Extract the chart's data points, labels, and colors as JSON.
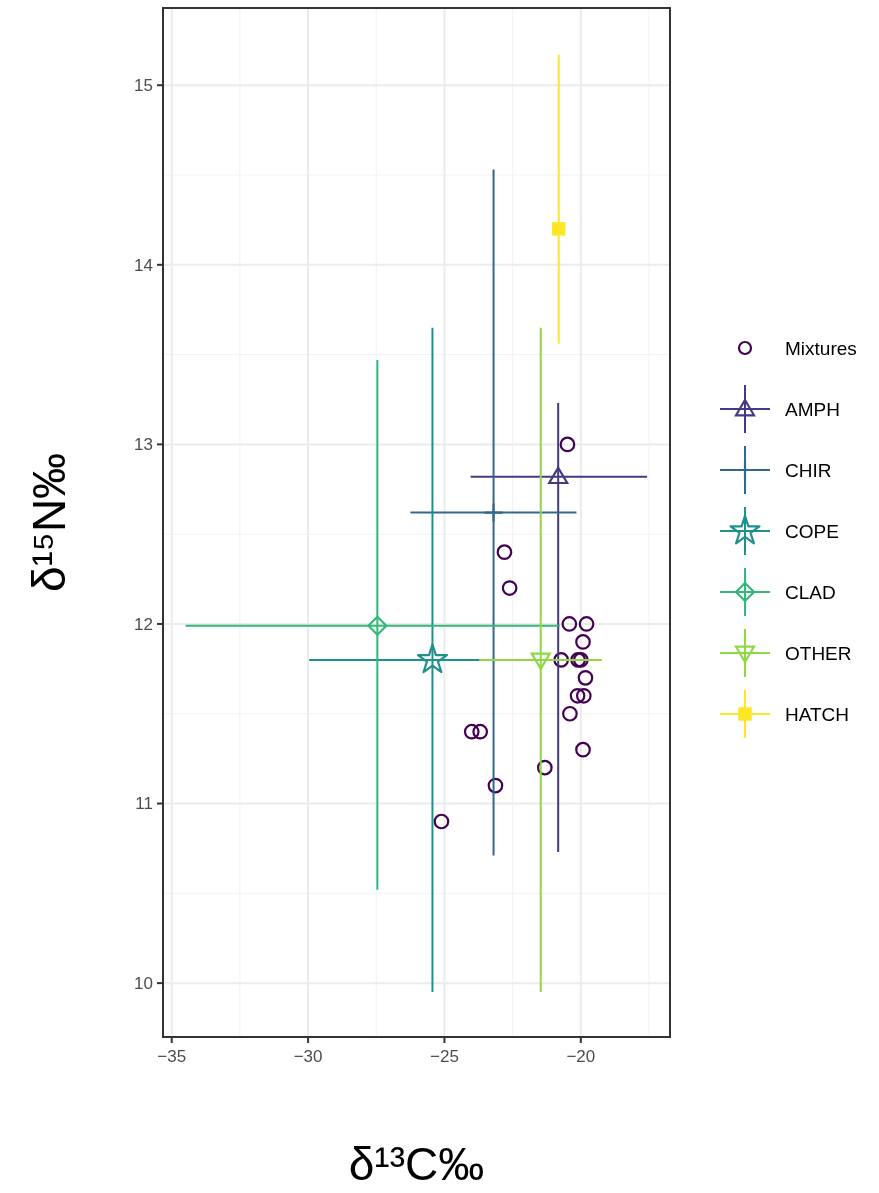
{
  "chart_data": {
    "type": "scatter",
    "xlabel": "δ¹³C‰",
    "ylabel": "δ¹⁵N‰",
    "xlim": [
      -35.32,
      -16.73
    ],
    "ylim": [
      9.7,
      15.43
    ],
    "xticks": [
      {
        "value": -35,
        "label": "−35"
      },
      {
        "value": -30,
        "label": "−30"
      },
      {
        "value": -25,
        "label": "−25"
      },
      {
        "value": -20,
        "label": "−20"
      }
    ],
    "yticks": [
      10,
      11,
      12,
      13,
      14,
      15
    ],
    "grid": true,
    "legend": "right",
    "series": [
      {
        "name": "Mixtures",
        "color": "#440154",
        "marker": "circle",
        "x": [
          -20.49,
          -22.8,
          -22.61,
          -20.42,
          -19.79,
          -19.92,
          -20.72,
          -20.1,
          -20.0,
          -19.83,
          -20.12,
          -19.89,
          -20.4,
          -19.92,
          -21.32,
          -23.13,
          -24.0,
          -23.69,
          -25.11
        ],
        "values": [
          13.0,
          12.4,
          12.2,
          12.0,
          12.0,
          11.9,
          11.8,
          11.8,
          11.8,
          11.7,
          11.6,
          11.6,
          11.5,
          11.3,
          11.2,
          11.1,
          11.4,
          11.4,
          10.9
        ]
      },
      {
        "name": "AMPH",
        "color": "#443a83",
        "marker": "triangle",
        "x": [
          -20.83
        ],
        "values": [
          12.82
        ],
        "errors": [
          [
            10.73,
            13.23
          ]
        ],
        "xerrors": [
          [
            -24.04,
            -17.57
          ]
        ]
      },
      {
        "name": "CHIR",
        "color": "#31688e",
        "marker": "cross",
        "x": [
          -23.2
        ],
        "values": [
          12.62
        ],
        "errors": [
          [
            10.71,
            14.53
          ]
        ],
        "xerrors": [
          [
            -26.25,
            -20.16
          ]
        ]
      },
      {
        "name": "COPE",
        "color": "#21908c",
        "marker": "star",
        "x": [
          -25.44
        ],
        "values": [
          11.8
        ],
        "errors": [
          [
            9.95,
            13.65
          ]
        ],
        "xerrors": [
          [
            -29.96,
            -23.71
          ]
        ]
      },
      {
        "name": "CLAD",
        "color": "#35b779",
        "marker": "diamond",
        "x": [
          -27.46
        ],
        "values": [
          11.99
        ],
        "errors": [
          [
            10.52,
            13.47
          ]
        ],
        "xerrors": [
          [
            -34.49,
            -20.77
          ]
        ]
      },
      {
        "name": "OTHER",
        "color": "#8fd744",
        "marker": "triangle-down",
        "x": [
          -21.47
        ],
        "values": [
          11.8
        ],
        "errors": [
          [
            9.95,
            13.65
          ]
        ],
        "xerrors": [
          [
            -23.71,
            -19.23
          ]
        ]
      },
      {
        "name": "HATCH",
        "color": "#fde725",
        "marker": "square",
        "x": [
          -20.81
        ],
        "values": [
          14.2
        ],
        "errors": [
          [
            13.56,
            15.17
          ]
        ],
        "xerrors": [
          null
        ]
      }
    ]
  }
}
